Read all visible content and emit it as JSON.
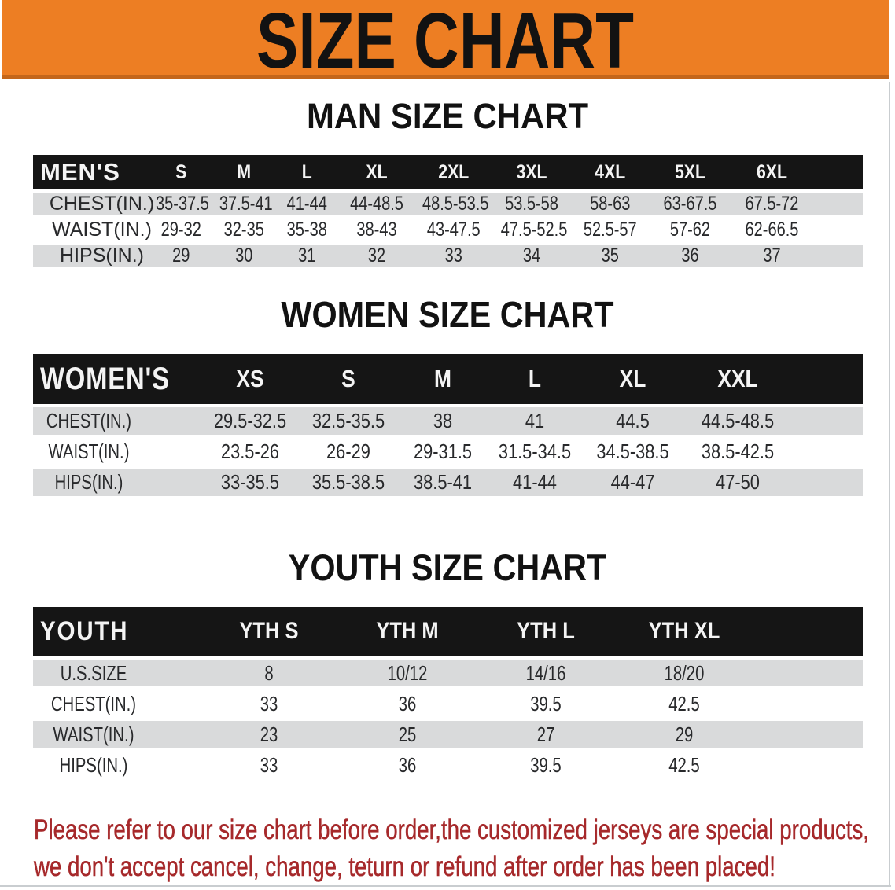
{
  "banner": {
    "title": "SIZE CHART",
    "bg_color": "#ED7E23"
  },
  "sections": [
    {
      "title": "MAN SIZE CHART",
      "table": {
        "corner": "MEN'S",
        "columns": [
          "S",
          "M",
          "L",
          "XL",
          "2XL",
          "3XL",
          "4XL",
          "5XL",
          "6XL"
        ],
        "rows": [
          {
            "label": "CHEST(IN.)",
            "values": [
              "35-37.5",
              "37.5-41",
              "41-44",
              "44-48.5",
              "48.5-53.5",
              "53.5-58",
              "58-63",
              "63-67.5",
              "67.5-72"
            ]
          },
          {
            "label": "WAIST(IN.)",
            "values": [
              "29-32",
              "32-35",
              "35-38",
              "38-43",
              "43-47.5",
              "47.5-52.5",
              "52.5-57",
              "57-62",
              "62-66.5"
            ]
          },
          {
            "label": "HIPS(IN.)",
            "values": [
              "29",
              "30",
              "31",
              "32",
              "33",
              "34",
              "35",
              "36",
              "37"
            ]
          }
        ]
      }
    },
    {
      "title": "WOMEN SIZE CHART",
      "table": {
        "corner": "WOMEN'S",
        "columns": [
          "XS",
          "S",
          "M",
          "L",
          "XL",
          "XXL"
        ],
        "rows": [
          {
            "label": "CHEST(IN.)",
            "values": [
              "29.5-32.5",
              "32.5-35.5",
              "38",
              "41",
              "44.5",
              "44.5-48.5"
            ]
          },
          {
            "label": "WAIST(IN.)",
            "values": [
              "23.5-26",
              "26-29",
              "29-31.5",
              "31.5-34.5",
              "34.5-38.5",
              "38.5-42.5"
            ]
          },
          {
            "label": "HIPS(IN.)",
            "values": [
              "33-35.5",
              "35.5-38.5",
              "38.5-41",
              "41-44",
              "44-47",
              "47-50"
            ]
          }
        ]
      }
    },
    {
      "title": "YOUTH SIZE CHART",
      "table": {
        "corner": "YOUTH",
        "columns": [
          "YTH S",
          "YTH M",
          "YTH L",
          "YTH XL"
        ],
        "rows": [
          {
            "label": "U.S.SIZE",
            "values": [
              "8",
              "10/12",
              "14/16",
              "18/20"
            ]
          },
          {
            "label": "CHEST(IN.)",
            "values": [
              "33",
              "36",
              "39.5",
              "42.5"
            ]
          },
          {
            "label": "WAIST(IN.)",
            "values": [
              "23",
              "25",
              "27",
              "29"
            ]
          },
          {
            "label": "HIPS(IN.)",
            "values": [
              "33",
              "36",
              "39.5",
              "42.5"
            ]
          }
        ]
      }
    }
  ],
  "disclaimer": {
    "line1": "Please refer to our size chart before order,the customized jerseys are special products,",
    "line2": "we don't accept cancel, change, teturn or refund after order has been placed!",
    "color": "#A6292B"
  }
}
